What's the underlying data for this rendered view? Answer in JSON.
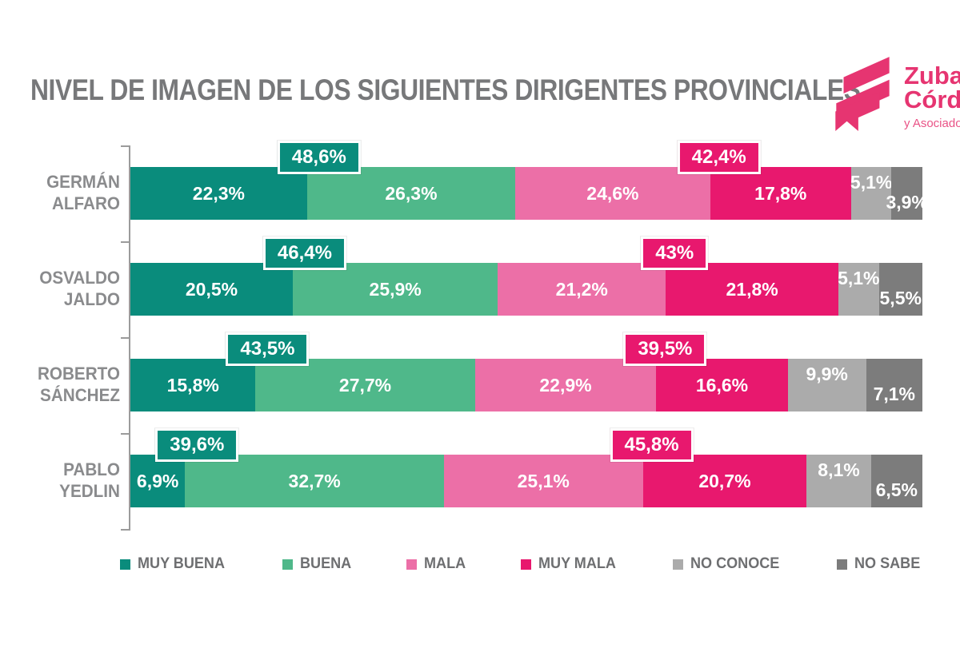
{
  "title": "NIVEL DE IMAGEN DE LOS SIGUIENTES DIRIGENTES PROVINCIALES",
  "logo": {
    "line1": "Zuban",
    "line2": "Córdoba",
    "line3": "y Asociados",
    "brand_color": "#e63571"
  },
  "chart_data": {
    "type": "bar",
    "variant": "horizontal-stacked",
    "unit": "percent",
    "x_range": [
      0,
      100
    ],
    "grid": false,
    "legend_position": "bottom",
    "axis_color": "#9b9b9b",
    "series": [
      {
        "key": "muy-buena",
        "name": "MUY BUENA",
        "color": "#0a8c7c"
      },
      {
        "key": "buena",
        "name": "BUENA",
        "color": "#4fb88a"
      },
      {
        "key": "mala",
        "name": "MALA",
        "color": "#ec6fa7"
      },
      {
        "key": "muy-mala",
        "name": "MUY MALA",
        "color": "#e8186e"
      },
      {
        "key": "no-conoce",
        "name": "NO CONOCE",
        "color": "#ababab"
      },
      {
        "key": "no-sabe",
        "name": "NO SABE",
        "color": "#7c7c7c"
      }
    ],
    "categories": [
      "GERMÁN ALFARO",
      "OSVALDO JALDO",
      "ROBERTO SÁNCHEZ",
      "PABLO YEDLIN"
    ],
    "rows": [
      {
        "name": "GERMÁN ALFARO",
        "label_lines": [
          "GERMÁN",
          "ALFARO"
        ],
        "values": [
          22.3,
          26.3,
          24.6,
          17.8,
          5.1,
          3.9
        ],
        "value_labels": [
          "22,3%",
          "26,3%",
          "24,6%",
          "17,8%",
          "5,1%",
          "3,9%"
        ],
        "positive_total": {
          "value": 48.6,
          "label": "48,6%"
        },
        "negative_total": {
          "value": 42.4,
          "label": "42,4%"
        }
      },
      {
        "name": "OSVALDO JALDO",
        "label_lines": [
          "OSVALDO",
          "JALDO"
        ],
        "values": [
          20.5,
          25.9,
          21.2,
          21.8,
          5.1,
          5.5
        ],
        "value_labels": [
          "20,5%",
          "25,9%",
          "21,2%",
          "21,8%",
          "5,1%",
          "5,5%"
        ],
        "positive_total": {
          "value": 46.4,
          "label": "46,4%"
        },
        "negative_total": {
          "value": 43.0,
          "label": "43%"
        }
      },
      {
        "name": "ROBERTO SÁNCHEZ",
        "label_lines": [
          "ROBERTO",
          "SÁNCHEZ"
        ],
        "values": [
          15.8,
          27.7,
          22.9,
          16.6,
          9.9,
          7.1
        ],
        "value_labels": [
          "15,8%",
          "27,7%",
          "22,9%",
          "16,6%",
          "9,9%",
          "7,1%"
        ],
        "positive_total": {
          "value": 43.5,
          "label": "43,5%"
        },
        "negative_total": {
          "value": 39.5,
          "label": "39,5%"
        }
      },
      {
        "name": "PABLO YEDLIN",
        "label_lines": [
          "PABLO YEDLIN"
        ],
        "values": [
          6.9,
          32.7,
          25.1,
          20.7,
          8.1,
          6.5
        ],
        "value_labels": [
          "6,9%",
          "32,7%",
          "25,1%",
          "20,7%",
          "8,1%",
          "6,5%"
        ],
        "positive_total": {
          "value": 39.6,
          "label": "39,6%"
        },
        "negative_total": {
          "value": 45.8,
          "label": "45,8%"
        }
      }
    ]
  }
}
